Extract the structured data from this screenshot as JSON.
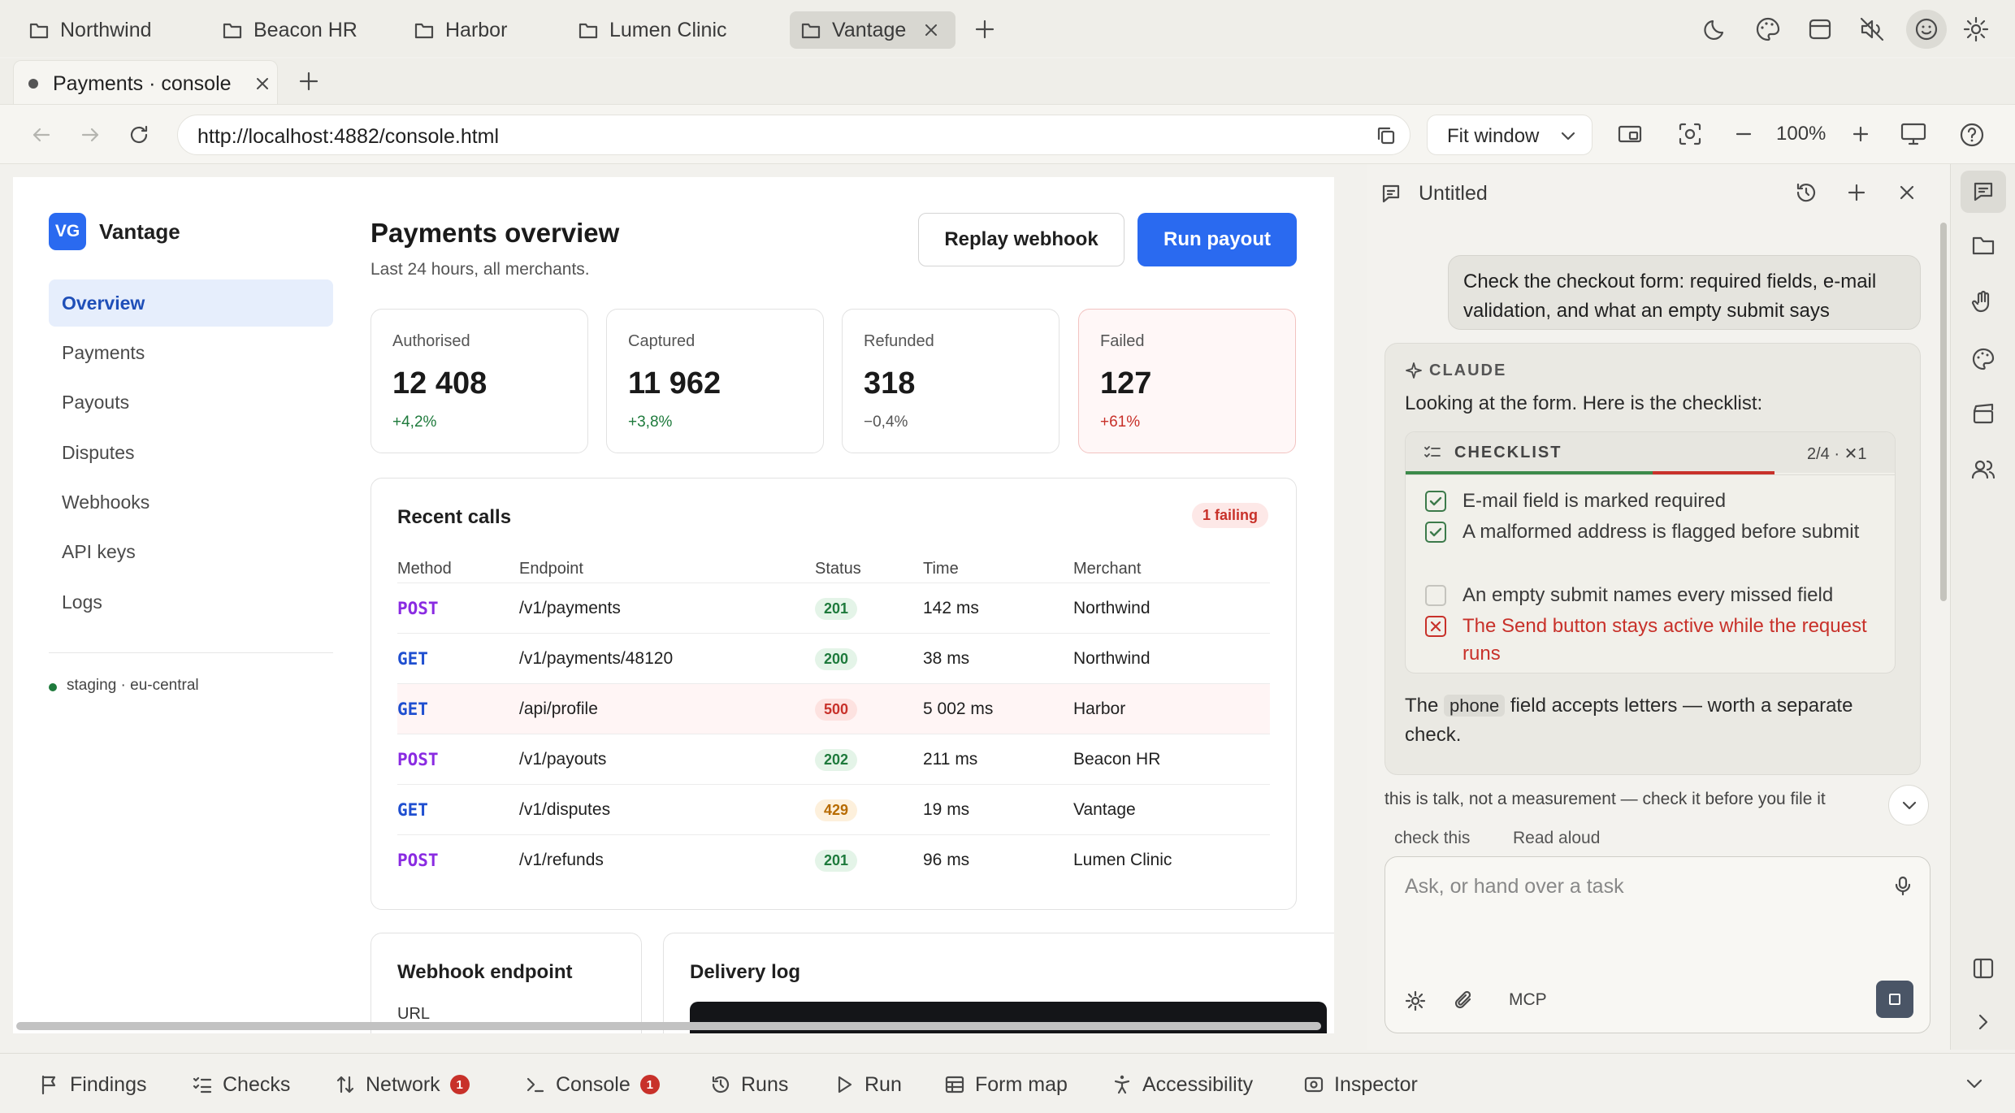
{
  "workspace_tabs": [
    {
      "label": "Northwind"
    },
    {
      "label": "Beacon HR"
    },
    {
      "label": "Harbor"
    },
    {
      "label": "Lumen Clinic"
    },
    {
      "label": "Vantage",
      "active": true
    }
  ],
  "page_tab": {
    "title": "Payments · console"
  },
  "address_bar": {
    "url": "http://localhost:4882/console.html",
    "fit_label": "Fit window",
    "zoom": "100%"
  },
  "app": {
    "logo_initials": "VG",
    "name": "Vantage",
    "nav": [
      "Overview",
      "Payments",
      "Payouts",
      "Disputes",
      "Webhooks",
      "API keys",
      "Logs"
    ],
    "active_nav": "Overview",
    "environment": "staging · eu-central"
  },
  "header": {
    "title": "Payments overview",
    "subtitle": "Last 24 hours, all merchants.",
    "replay_label": "Replay webhook",
    "run_label": "Run payout"
  },
  "stats": [
    {
      "label": "Authorised",
      "value": "12 408",
      "delta": "+4,2%"
    },
    {
      "label": "Captured",
      "value": "11 962",
      "delta": "+3,8%"
    },
    {
      "label": "Refunded",
      "value": "318",
      "delta": "−0,4%"
    },
    {
      "label": "Failed",
      "value": "127",
      "delta": "+61%"
    }
  ],
  "recent_calls": {
    "title": "Recent calls",
    "badge": "1 failing",
    "columns": [
      "Method",
      "Endpoint",
      "Status",
      "Time",
      "Merchant"
    ],
    "rows": [
      {
        "method": "POST",
        "endpoint": "/v1/payments",
        "status": "201",
        "time": "142 ms",
        "merchant": "Northwind"
      },
      {
        "method": "GET",
        "endpoint": "/v1/payments/48120",
        "status": "200",
        "time": "38 ms",
        "merchant": "Northwind"
      },
      {
        "method": "GET",
        "endpoint": "/api/profile",
        "status": "500",
        "time": "5 002 ms",
        "merchant": "Harbor"
      },
      {
        "method": "POST",
        "endpoint": "/v1/payouts",
        "status": "202",
        "time": "211 ms",
        "merchant": "Beacon HR"
      },
      {
        "method": "GET",
        "endpoint": "/v1/disputes",
        "status": "429",
        "time": "19 ms",
        "merchant": "Vantage"
      },
      {
        "method": "POST",
        "endpoint": "/v1/refunds",
        "status": "201",
        "time": "96 ms",
        "merchant": "Lumen Clinic"
      }
    ]
  },
  "webhook": {
    "title": "Webhook endpoint",
    "url_label": "URL"
  },
  "delivery_log": {
    "title": "Delivery log"
  },
  "assistant": {
    "title": "Untitled",
    "user_message": "Check the checkout form: required fields, e-mail validation, and what an empty submit says",
    "speaker": "CLAUDE",
    "intro": "Looking at the form. Here is the checklist:",
    "checklist_title": "CHECKLIST",
    "checklist_count": "2/4 · ✕1",
    "checklist": [
      {
        "text": "E-mail field is marked required",
        "state": "done"
      },
      {
        "text": "A malformed address is flagged before submit",
        "state": "done"
      },
      {
        "text": "An empty submit names every missed field",
        "state": "open"
      },
      {
        "text": "The Send button stays active while the request runs",
        "state": "failed"
      }
    ],
    "note_before": "The",
    "note_code": "phone",
    "note_after": "field accepts letters — worth a separate check.",
    "disclaimer": "this is talk, not a measurement — check it before you file it",
    "action_check": "check this",
    "action_read": "Read aloud",
    "input_placeholder": "Ask, or hand over a task",
    "mcp_label": "MCP"
  },
  "bottom_bar": [
    {
      "label": "Findings",
      "icon": "flag-icon"
    },
    {
      "label": "Checks",
      "icon": "checklist-icon"
    },
    {
      "label": "Network",
      "icon": "arrows-icon",
      "count": "1"
    },
    {
      "label": "Console",
      "icon": "terminal-icon",
      "count": "1"
    },
    {
      "label": "Runs",
      "icon": "history-icon"
    },
    {
      "label": "Run",
      "icon": "play-icon"
    },
    {
      "label": "Form map",
      "icon": "table-icon"
    },
    {
      "label": "Accessibility",
      "icon": "accessibility-icon"
    },
    {
      "label": "Inspector",
      "icon": "inspector-icon"
    }
  ],
  "colors": {
    "accent": "#2a6af0",
    "success": "#1e7a3c",
    "danger": "#c8312a",
    "warning": "#b76b00"
  }
}
